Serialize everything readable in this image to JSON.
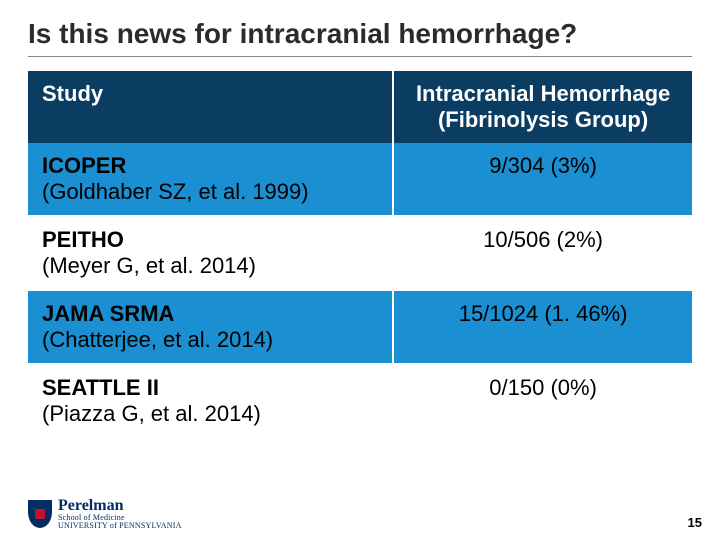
{
  "title": "Is this news for intracranial hemorrhage?",
  "table": {
    "header": {
      "col1": "Study",
      "col2": "Intracranial Hemorrhage (Fibrinolysis Group)"
    },
    "rows": [
      {
        "name": "ICOPER",
        "cite": "(Goldhaber SZ, et al. 1999)",
        "value": "9/304 (3%)"
      },
      {
        "name": "PEITHO",
        "cite": "(Meyer G, et al. 2014)",
        "value": "10/506 (2%)"
      },
      {
        "name": "JAMA SRMA",
        "cite": "(Chatterjee, et al. 2014)",
        "value": "15/1024 (1. 46%)"
      },
      {
        "name": "SEATTLE II",
        "cite": "(Piazza G, et al. 2014)",
        "value": "0/150 (0%)"
      }
    ]
  },
  "footer": {
    "logo_main": "Perelman",
    "logo_sub1": "School of Medicine",
    "logo_sub2": "UNIVERSITY of PENNSYLVANIA",
    "page": "15"
  },
  "colors": {
    "header_bg": "#0b3d63",
    "row_highlight": "#1a8fd1",
    "penn_blue": "#002d62",
    "penn_red": "#c8102e"
  }
}
